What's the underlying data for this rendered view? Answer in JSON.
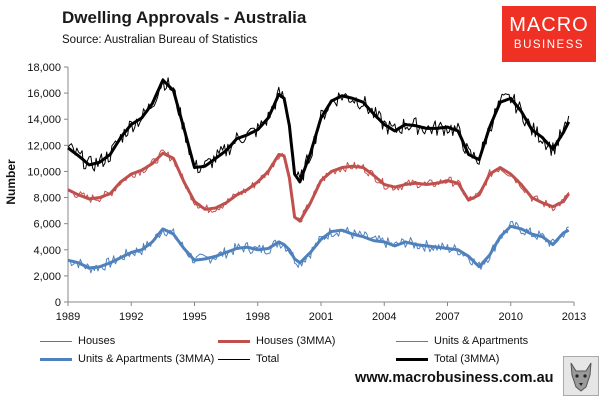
{
  "header": {
    "title": "Dwelling Approvals - Australia",
    "source": "Source:  Australian Bureau of Statistics"
  },
  "logo": {
    "line1": "MACRO",
    "line2": "BUSINESS",
    "color": "#ee3124"
  },
  "footer": {
    "url": "www.macrobusiness.com.au",
    "mascot_icon": "wolf-icon"
  },
  "chart_data": {
    "type": "line",
    "ylabel": "Number",
    "xlabel": "",
    "ylim": [
      0,
      18000
    ],
    "xlim": [
      1989,
      2013
    ],
    "yticks": [
      "0",
      "2,000",
      "4,000",
      "6,000",
      "8,000",
      "10,000",
      "12,000",
      "14,000",
      "16,000",
      "18,000"
    ],
    "yticks_values": [
      0,
      2000,
      4000,
      6000,
      8000,
      10000,
      12000,
      14000,
      16000,
      18000
    ],
    "xticks": [
      "1989",
      "1992",
      "1995",
      "1998",
      "2001",
      "2004",
      "2007",
      "2010",
      "2013"
    ],
    "xticks_values": [
      1989,
      1992,
      1995,
      1998,
      2001,
      2004,
      2007,
      2010,
      2013
    ],
    "grid": false,
    "legend_position": "bottom",
    "x": [
      1989,
      1989.5,
      1990,
      1990.5,
      1991,
      1991.5,
      1992,
      1992.5,
      1993,
      1993.5,
      1994,
      1994.5,
      1995,
      1995.5,
      1996,
      1996.5,
      1997,
      1997.5,
      1998,
      1998.5,
      1999,
      1999.25,
      1999.5,
      1999.75,
      2000,
      2000.5,
      2001,
      2001.5,
      2002,
      2002.5,
      2003,
      2003.5,
      2004,
      2004.5,
      2005,
      2005.5,
      2006,
      2006.5,
      2007,
      2007.5,
      2008,
      2008.5,
      2009,
      2009.5,
      2010,
      2010.5,
      2011,
      2011.5,
      2012,
      2012.5,
      2012.75
    ],
    "series": [
      {
        "name": "Houses",
        "color": "#c0504d",
        "values": [
          8600,
          8200,
          7900,
          8000,
          8300,
          9200,
          9800,
          10100,
          10600,
          11400,
          11000,
          9200,
          7700,
          7100,
          7200,
          7600,
          8200,
          8600,
          9200,
          10000,
          11300,
          11200,
          9500,
          6500,
          6200,
          7600,
          9300,
          10000,
          10300,
          10400,
          10300,
          9700,
          9000,
          8800,
          9000,
          9100,
          9000,
          9100,
          9300,
          9100,
          7800,
          8200,
          9800,
          10300,
          9800,
          9000,
          8000,
          7600,
          7300,
          7700,
          8300
        ]
      },
      {
        "name": "Houses (3MMA)",
        "color": "#c0504d",
        "values": [
          8600,
          8200,
          7900,
          8000,
          8300,
          9200,
          9800,
          10100,
          10600,
          11400,
          11000,
          9200,
          7700,
          7100,
          7200,
          7600,
          8200,
          8600,
          9200,
          10000,
          11300,
          11200,
          9500,
          6500,
          6200,
          7600,
          9300,
          10000,
          10300,
          10400,
          10300,
          9700,
          9000,
          8800,
          9000,
          9100,
          9000,
          9100,
          9300,
          9100,
          7800,
          8200,
          9800,
          10300,
          9800,
          9000,
          8000,
          7600,
          7300,
          7700,
          8300
        ]
      },
      {
        "name": "Units & Apartments",
        "color": "#4f81bd",
        "values": [
          3200,
          3000,
          2600,
          2700,
          3000,
          3400,
          3800,
          4000,
          4600,
          5600,
          5200,
          4100,
          3200,
          3300,
          3500,
          3800,
          4100,
          4200,
          4000,
          4100,
          4600,
          4400,
          4000,
          3300,
          3000,
          3800,
          4800,
          5400,
          5500,
          5200,
          5000,
          4700,
          4600,
          4300,
          4600,
          4400,
          4300,
          4200,
          4100,
          4000,
          3500,
          2700,
          3600,
          5000,
          5800,
          5600,
          5200,
          5000,
          4400,
          5300,
          5500
        ]
      },
      {
        "name": "Units & Apartments (3MMA)",
        "color": "#4f81bd",
        "values": [
          3200,
          3000,
          2600,
          2700,
          3000,
          3400,
          3800,
          4000,
          4600,
          5600,
          5200,
          4100,
          3200,
          3300,
          3500,
          3800,
          4100,
          4200,
          4000,
          4100,
          4600,
          4400,
          4000,
          3300,
          3000,
          3800,
          4800,
          5400,
          5500,
          5200,
          5000,
          4700,
          4600,
          4300,
          4600,
          4400,
          4300,
          4200,
          4100,
          4000,
          3500,
          2700,
          3600,
          5000,
          5800,
          5600,
          5200,
          5000,
          4400,
          5300,
          5500
        ]
      },
      {
        "name": "Total",
        "color": "#000000",
        "values": [
          11800,
          11200,
          10500,
          10700,
          11300,
          12600,
          13600,
          14100,
          15200,
          17000,
          16200,
          13300,
          10300,
          10400,
          11000,
          11600,
          12500,
          12800,
          13200,
          14100,
          15900,
          15600,
          13500,
          9800,
          9200,
          11400,
          14100,
          15400,
          15800,
          15600,
          15300,
          14400,
          13600,
          13100,
          13600,
          13500,
          13300,
          13300,
          13400,
          13100,
          11300,
          10900,
          13400,
          15300,
          15600,
          14600,
          13200,
          12600,
          11700,
          13000,
          13800
        ]
      },
      {
        "name": "Total (3MMA)",
        "color": "#000000",
        "values": [
          11800,
          11200,
          10500,
          10700,
          11300,
          12600,
          13600,
          14100,
          15200,
          17000,
          16200,
          13300,
          10300,
          10400,
          11000,
          11600,
          12500,
          12800,
          13200,
          14100,
          15900,
          15600,
          13500,
          9800,
          9200,
          11400,
          14100,
          15400,
          15800,
          15600,
          15300,
          14400,
          13600,
          13100,
          13600,
          13500,
          13300,
          13300,
          13400,
          13100,
          11300,
          10900,
          13400,
          15300,
          15600,
          14600,
          13200,
          12600,
          11700,
          13000,
          13800
        ]
      }
    ]
  }
}
